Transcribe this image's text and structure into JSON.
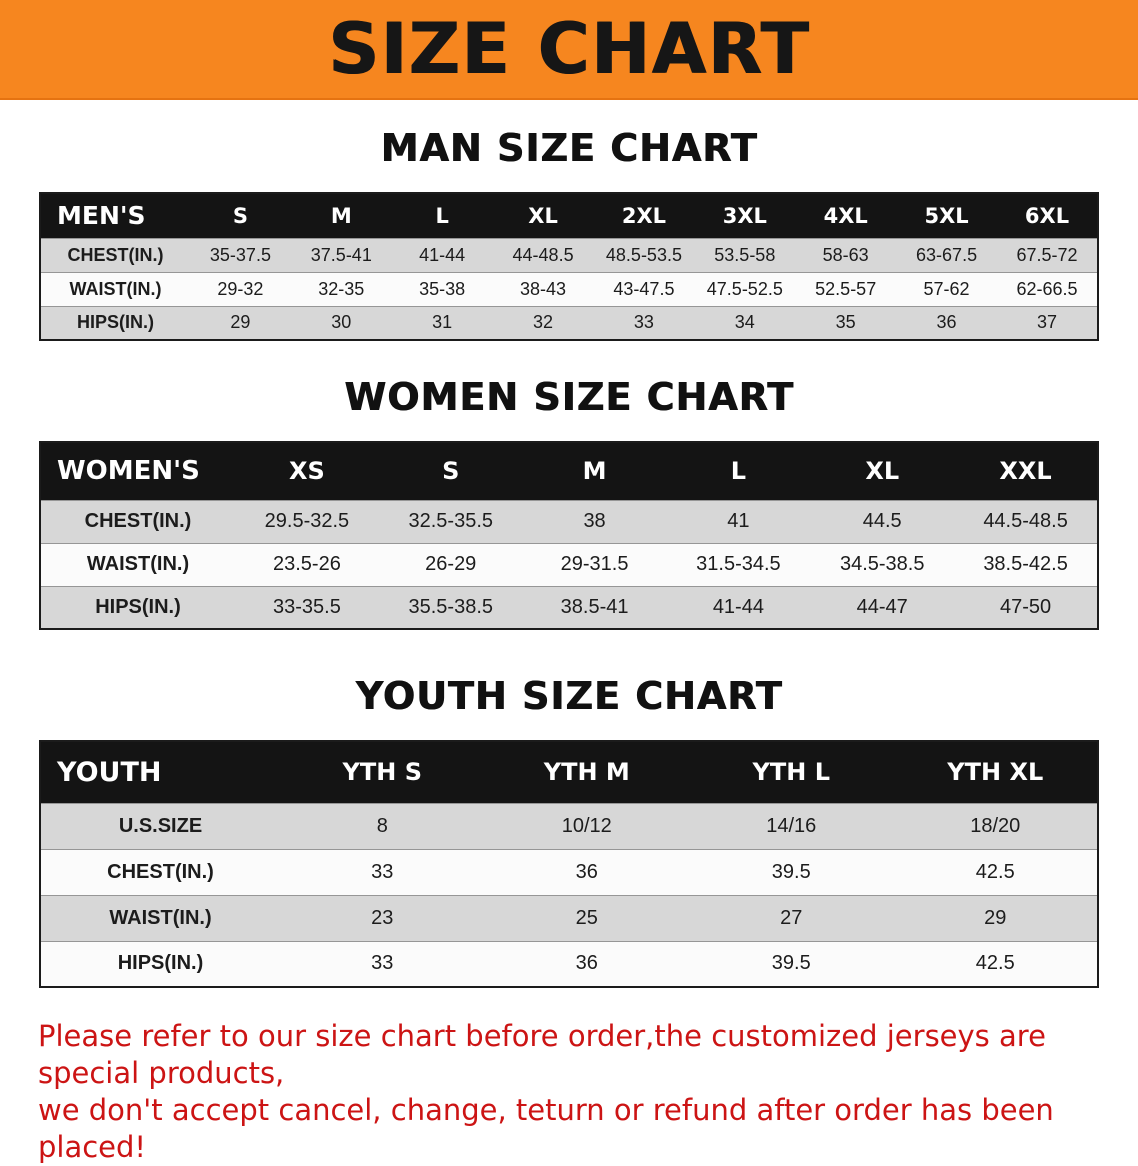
{
  "banner": {
    "title": "SIZE CHART",
    "bg_color": "#f6861f",
    "text_color": "#161616"
  },
  "sections": [
    {
      "heading": "MAN SIZE CHART",
      "table": {
        "header": [
          "MEN'S",
          "S",
          "M",
          "L",
          "XL",
          "2XL",
          "3XL",
          "4XL",
          "5XL",
          "6XL"
        ],
        "rows": [
          [
            "CHEST(IN.)",
            "35-37.5",
            "37.5-41",
            "41-44",
            "44-48.5",
            "48.5-53.5",
            "53.5-58",
            "58-63",
            "63-67.5",
            "67.5-72"
          ],
          [
            "WAIST(IN.)",
            "29-32",
            "32-35",
            "35-38",
            "38-43",
            "43-47.5",
            "47.5-52.5",
            "52.5-57",
            "57-62",
            "62-66.5"
          ],
          [
            "HIPS(IN.)",
            "29",
            "30",
            "31",
            "32",
            "33",
            "34",
            "35",
            "36",
            "37"
          ]
        ]
      }
    },
    {
      "heading": "WOMEN SIZE CHART",
      "table": {
        "header": [
          "WOMEN'S",
          "XS",
          "S",
          "M",
          "L",
          "XL",
          "XXL"
        ],
        "rows": [
          [
            "CHEST(IN.)",
            "29.5-32.5",
            "32.5-35.5",
            "38",
            "41",
            "44.5",
            "44.5-48.5"
          ],
          [
            "WAIST(IN.)",
            "23.5-26",
            "26-29",
            "29-31.5",
            "31.5-34.5",
            "34.5-38.5",
            "38.5-42.5"
          ],
          [
            "HIPS(IN.)",
            "33-35.5",
            "35.5-38.5",
            "38.5-41",
            "41-44",
            "44-47",
            "47-50"
          ]
        ]
      }
    },
    {
      "heading": "YOUTH SIZE CHART",
      "table": {
        "header": [
          "YOUTH",
          "YTH S",
          "YTH M",
          "YTH L",
          "YTH XL"
        ],
        "rows": [
          [
            "U.S.SIZE",
            "8",
            "10/12",
            "14/16",
            "18/20"
          ],
          [
            "CHEST(IN.)",
            "33",
            "36",
            "39.5",
            "42.5"
          ],
          [
            "WAIST(IN.)",
            "23",
            "25",
            "27",
            "29"
          ],
          [
            "HIPS(IN.)",
            "33",
            "36",
            "39.5",
            "42.5"
          ]
        ]
      }
    }
  ],
  "disclaimer": {
    "line1": "Please refer to our size chart before order,the customized jerseys are special products,",
    "line2": "we don't accept cancel, change, teturn or refund after order has been placed!",
    "text_color": "#cc1414"
  }
}
